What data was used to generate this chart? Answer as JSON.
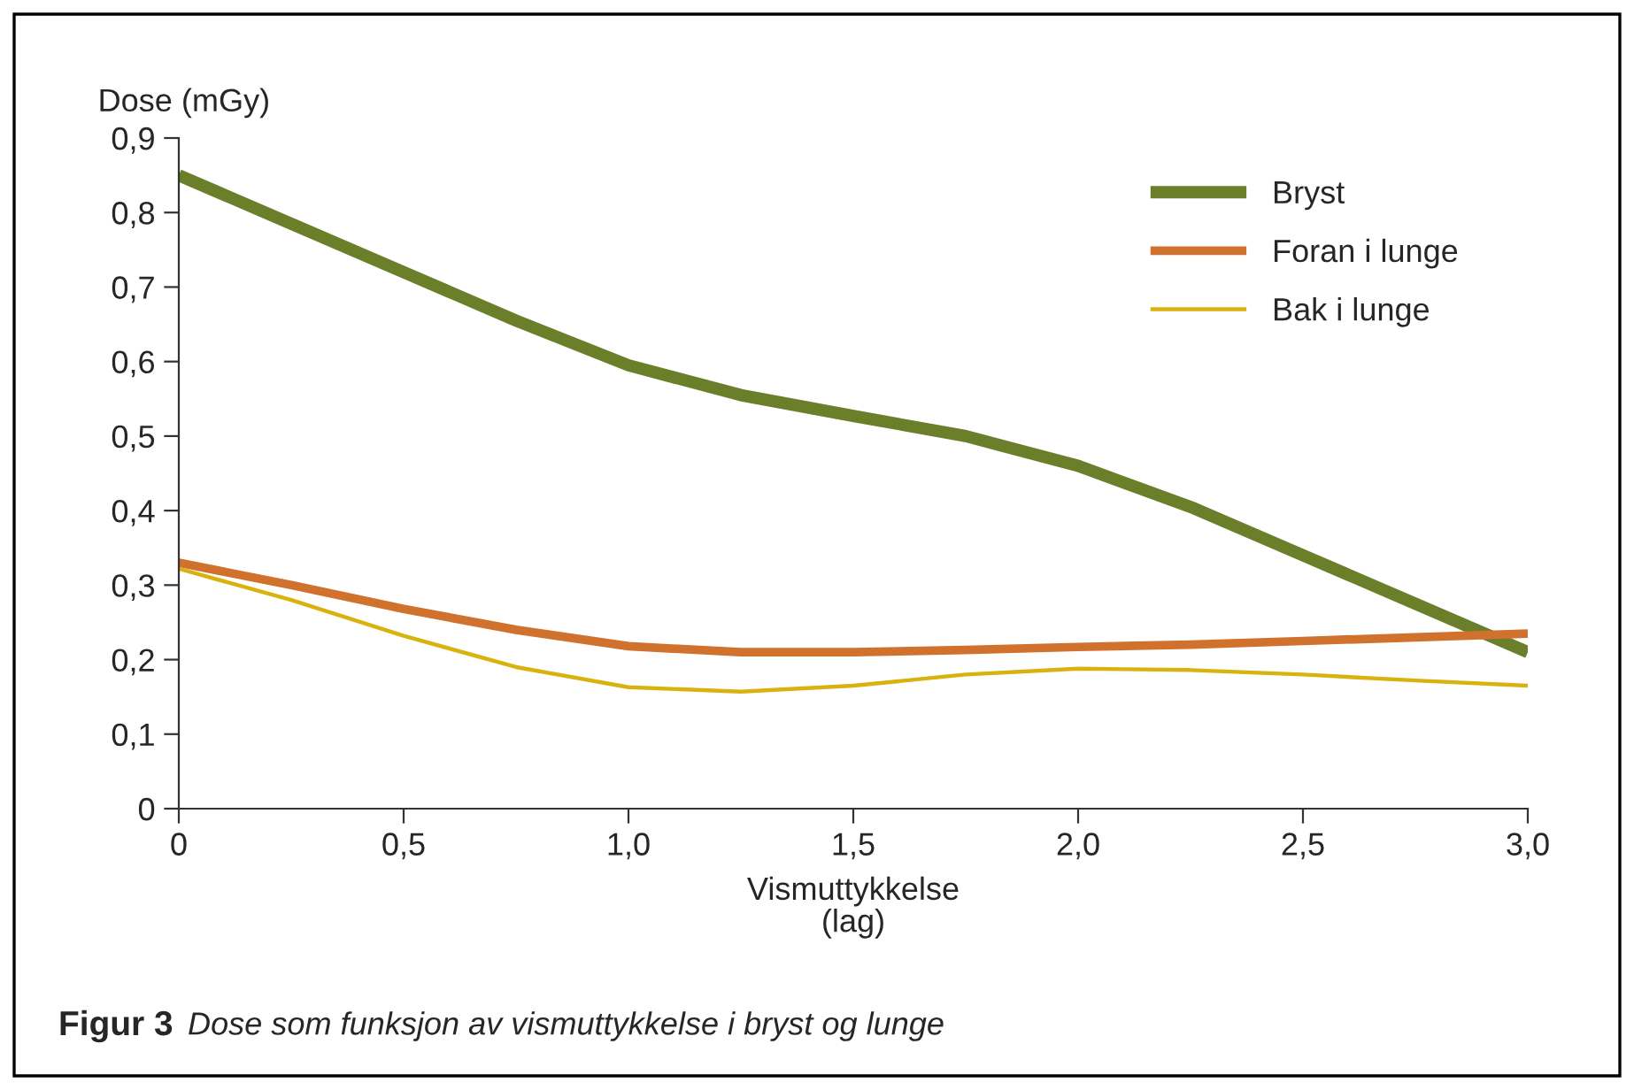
{
  "chart_data": {
    "type": "line",
    "ylabel": "Dose (mGy)",
    "xlabel": "Vismuttykkelse\n(lag)",
    "annotations": [
      "Figur 3",
      "Dose som funksjon av vismuttykkelse i bryst og lunge"
    ],
    "x": [
      0,
      0.25,
      0.5,
      0.75,
      1.0,
      1.25,
      1.5,
      1.75,
      2.0,
      2.25,
      2.5,
      2.75,
      3.0
    ],
    "series": [
      {
        "name": "Bryst",
        "color": "#6b7f2a",
        "values": [
          0.85,
          0.785,
          0.72,
          0.655,
          0.595,
          0.555,
          0.527,
          0.5,
          0.46,
          0.405,
          0.34,
          0.275,
          0.21
        ]
      },
      {
        "name": "Foran i lunge",
        "color": "#d0722e",
        "values": [
          0.33,
          0.3,
          0.268,
          0.24,
          0.218,
          0.21,
          0.21,
          0.213,
          0.217,
          0.22,
          0.225,
          0.23,
          0.235
        ]
      },
      {
        "name": "Bak i lunge",
        "color": "#d8b20e",
        "values": [
          0.322,
          0.28,
          0.232,
          0.19,
          0.163,
          0.157,
          0.165,
          0.18,
          0.188,
          0.186,
          0.18,
          0.172,
          0.165
        ]
      }
    ],
    "xlim": [
      0,
      3.0
    ],
    "ylim": [
      0,
      0.9
    ],
    "xticks": [
      0,
      {
        "value": 0.5,
        "label": "0,5"
      },
      {
        "value": 1.0,
        "label": "1,0"
      },
      {
        "value": 1.5,
        "label": "1,5"
      },
      {
        "value": 2.0,
        "label": "2,0"
      },
      {
        "value": 2.5,
        "label": "2,5"
      },
      {
        "value": 3.0,
        "label": "3,0"
      }
    ],
    "yticks": [
      0,
      {
        "value": 0.1,
        "label": "0,1"
      },
      {
        "value": 0.2,
        "label": "0,2"
      },
      {
        "value": 0.3,
        "label": "0,3"
      },
      {
        "value": 0.4,
        "label": "0,4"
      },
      {
        "value": 0.5,
        "label": "0,5"
      },
      {
        "value": 0.6,
        "label": "0,6"
      },
      {
        "value": 0.7,
        "label": "0,7"
      },
      {
        "value": 0.8,
        "label": "0,8"
      },
      {
        "value": 0.9,
        "label": "0,9"
      }
    ],
    "grid": false,
    "legend": "top right",
    "line_style": "solid",
    "marker": "none"
  }
}
